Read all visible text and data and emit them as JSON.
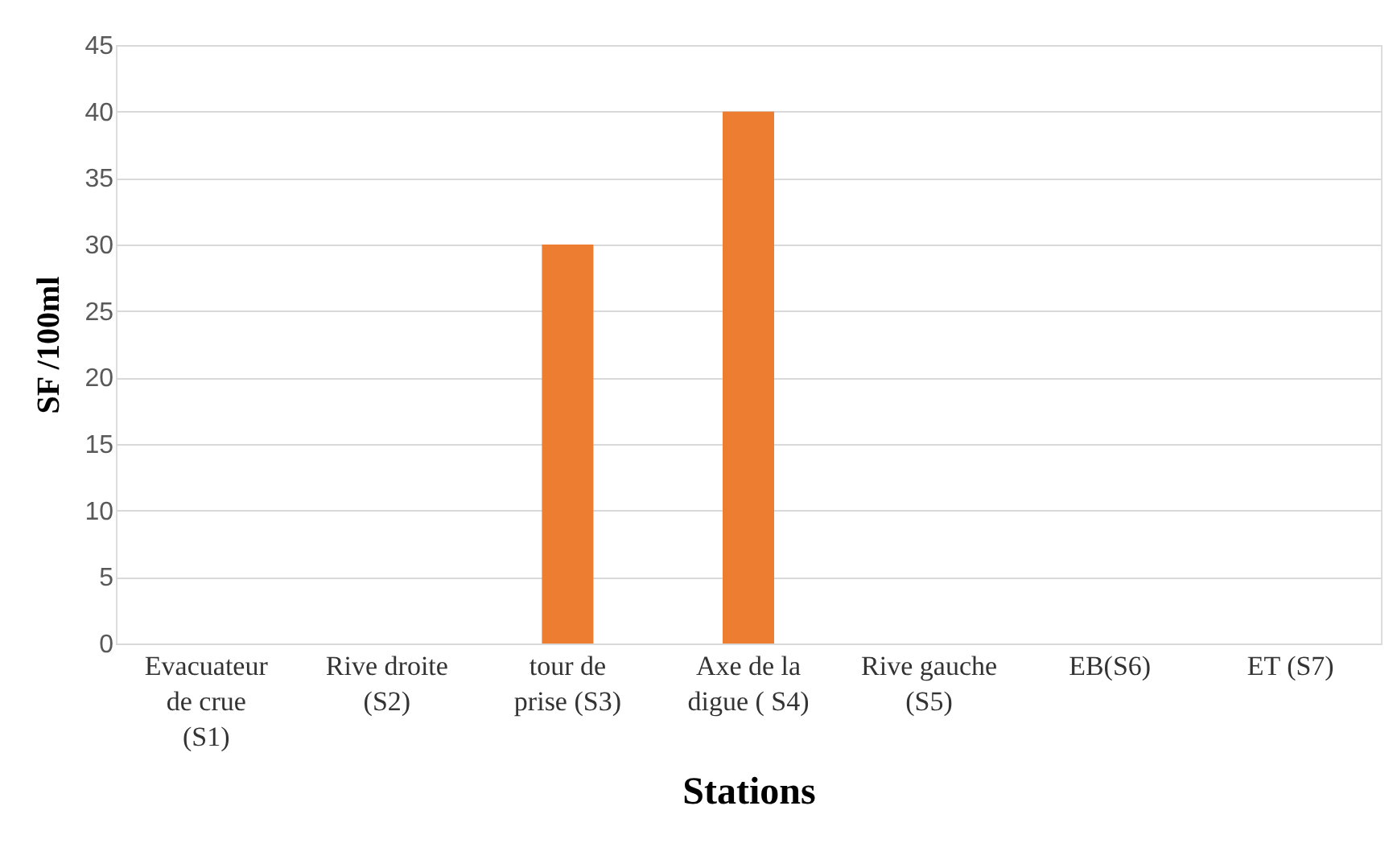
{
  "chart_data": {
    "type": "bar",
    "xlabel": "Stations",
    "ylabel": "SF /100ml",
    "categories": [
      "Evacuateur de crue (S1)",
      "Rive droite (S2)",
      "tour de prise (S3)",
      "Axe de la digue ( S4)",
      "Rive gauche (S5)",
      "EB(S6)",
      "ET (S7)"
    ],
    "values": [
      0,
      0,
      30,
      40,
      0,
      0,
      0
    ],
    "color": "#ed7d31",
    "ylim": [
      0,
      45
    ],
    "yticks": [
      0,
      5,
      10,
      15,
      20,
      25,
      30,
      35,
      40,
      45
    ],
    "grid": "y"
  }
}
